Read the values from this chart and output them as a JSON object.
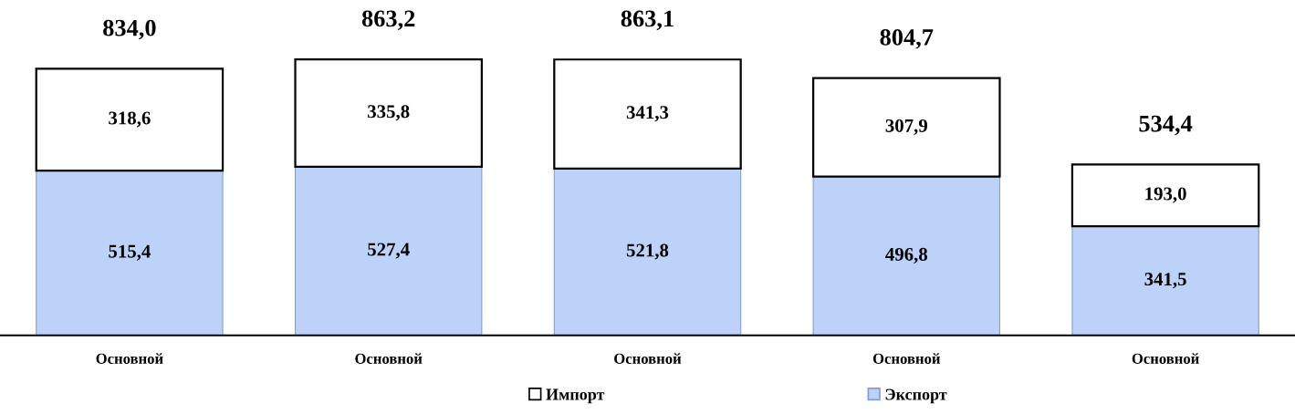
{
  "chart_data": {
    "type": "bar",
    "stacked": true,
    "categories": [
      "Основной",
      "Основной",
      "Основной",
      "Основной",
      "Основной"
    ],
    "series": [
      {
        "name": "Экспорт",
        "color": "#bcd2f8",
        "values": [
          515.4,
          527.4,
          521.8,
          496.8,
          341.5
        ],
        "value_labels": [
          "515,4",
          "527,4",
          "521,8",
          "496,8",
          "341,5"
        ]
      },
      {
        "name": "Импорт",
        "color": "#ffffff",
        "values": [
          318.6,
          335.8,
          341.3,
          307.9,
          193.0
        ],
        "value_labels": [
          "318,6",
          "335,8",
          "341,3",
          "307,9",
          "193,0"
        ]
      }
    ],
    "totals": [
      "834,0",
      "863,2",
      "863,1",
      "804,7",
      "534,4"
    ],
    "tick_labels": "x",
    "grid": false,
    "legend": "bottom"
  }
}
